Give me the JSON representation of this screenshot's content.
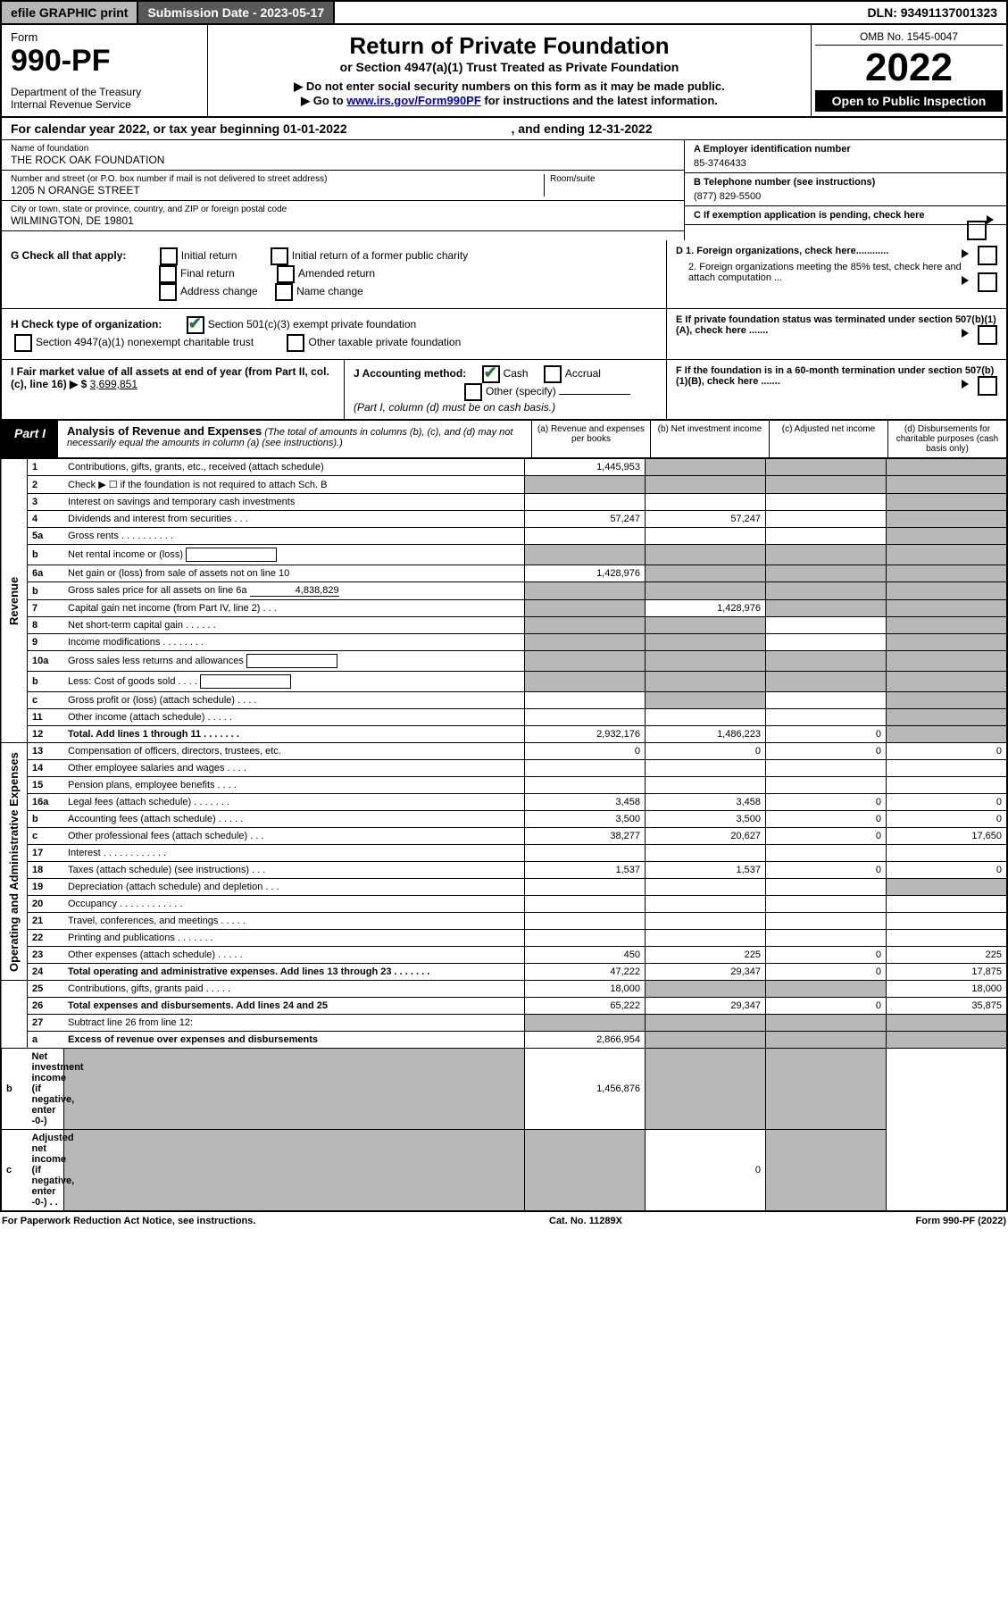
{
  "topbar": {
    "efile": "efile GRAPHIC print",
    "sub_label": "Submission Date - 2023-05-17",
    "dln": "DLN: 93491137001323"
  },
  "header": {
    "form_label": "Form",
    "form_number": "990-PF",
    "dept": "Department of the Treasury\nInternal Revenue Service",
    "title": "Return of Private Foundation",
    "subtitle": "or Section 4947(a)(1) Trust Treated as Private Foundation",
    "note1": "▶ Do not enter social security numbers on this form as it may be made public.",
    "note2_pre": "▶ Go to ",
    "note2_link": "www.irs.gov/Form990PF",
    "note2_post": " for instructions and the latest information.",
    "omb": "OMB No. 1545-0047",
    "year": "2022",
    "open_public": "Open to Public Inspection"
  },
  "calyear": {
    "text_pre": "For calendar year 2022, or tax year beginning ",
    "begin": "01-01-2022",
    "mid": ", and ending ",
    "end": "12-31-2022"
  },
  "ident": {
    "name_label": "Name of foundation",
    "name": "THE ROCK OAK FOUNDATION",
    "addr_label": "Number and street (or P.O. box number if mail is not delivered to street address)",
    "addr": "1205 N ORANGE STREET",
    "room_label": "Room/suite",
    "city_label": "City or town, state or province, country, and ZIP or foreign postal code",
    "city": "WILMINGTON, DE  19801",
    "a_label": "A Employer identification number",
    "a_value": "85-3746433",
    "b_label": "B Telephone number (see instructions)",
    "b_value": "(877) 829-5500",
    "c_label": "C If exemption application is pending, check here"
  },
  "sectionD": {
    "d1": "D 1. Foreign organizations, check here............",
    "d2": "2. Foreign organizations meeting the 85% test, check here and attach computation ...",
    "e": "E  If private foundation status was terminated under section 507(b)(1)(A), check here .......",
    "f": "F  If the foundation is in a 60-month termination under section 507(b)(1)(B), check here ......."
  },
  "sectionG": {
    "label": "G Check all that apply:",
    "opts": [
      "Initial return",
      "Initial return of a former public charity",
      "Final return",
      "Amended return",
      "Address change",
      "Name change"
    ]
  },
  "sectionH": {
    "label": "H Check type of organization:",
    "opt1": "Section 501(c)(3) exempt private foundation",
    "opt2": "Section 4947(a)(1) nonexempt charitable trust",
    "opt3": "Other taxable private foundation"
  },
  "sectionI": {
    "label_pre": "I Fair market value of all assets at end of year (from Part II, col. (c), line 16) ▶ $",
    "value": "3,699,851"
  },
  "sectionJ": {
    "label": "J Accounting method:",
    "cash": "Cash",
    "accrual": "Accrual",
    "other": "Other (specify)",
    "note": "(Part I, column (d) must be on cash basis.)"
  },
  "part1": {
    "label": "Part I",
    "title": "Analysis of Revenue and Expenses",
    "title_note": "(The total of amounts in columns (b), (c), and (d) may not necessarily equal the amounts in column (a) (see instructions).)",
    "cols": {
      "a": "(a) Revenue and expenses per books",
      "b": "(b) Net investment income",
      "c": "(c) Adjusted net income",
      "d": "(d) Disbursements for charitable purposes (cash basis only)"
    },
    "side_labels": {
      "revenue": "Revenue",
      "expenses": "Operating and Administrative Expenses"
    },
    "lines": [
      {
        "n": "1",
        "d": "Contributions, gifts, grants, etc., received (attach schedule)",
        "a": "1,445,953",
        "b": "shade",
        "c": "shade",
        "dd": "shade"
      },
      {
        "n": "2",
        "d": "Check ▶ ☐ if the foundation is not required to attach Sch. B",
        "a": "shade",
        "b": "shade",
        "c": "shade",
        "dd": "shade"
      },
      {
        "n": "3",
        "d": "Interest on savings and temporary cash investments",
        "a": "",
        "b": "",
        "c": "",
        "dd": "shade"
      },
      {
        "n": "4",
        "d": "Dividends and interest from securities  .  .  .",
        "a": "57,247",
        "b": "57,247",
        "c": "",
        "dd": "shade"
      },
      {
        "n": "5a",
        "d": "Gross rents  .  .  .  .  .  .  .  .  .  .",
        "a": "",
        "b": "",
        "c": "",
        "dd": "shade"
      },
      {
        "n": "b",
        "d": "Net rental income or (loss)",
        "a": "shade",
        "b": "shade",
        "c": "shade",
        "dd": "shade",
        "inline_box": true
      },
      {
        "n": "6a",
        "d": "Net gain or (loss) from sale of assets not on line 10",
        "a": "1,428,976",
        "b": "shade",
        "c": "shade",
        "dd": "shade"
      },
      {
        "n": "b",
        "d": "Gross sales price for all assets on line 6a",
        "a": "shade",
        "b": "shade",
        "c": "shade",
        "dd": "shade",
        "inline_val": "4,838,829"
      },
      {
        "n": "7",
        "d": "Capital gain net income (from Part IV, line 2)  .  .  .",
        "a": "shade",
        "b": "1,428,976",
        "c": "shade",
        "dd": "shade"
      },
      {
        "n": "8",
        "d": "Net short-term capital gain  .  .  .  .  .  .",
        "a": "shade",
        "b": "shade",
        "c": "",
        "dd": "shade"
      },
      {
        "n": "9",
        "d": "Income modifications  .  .  .  .  .  .  .  .",
        "a": "shade",
        "b": "shade",
        "c": "",
        "dd": "shade"
      },
      {
        "n": "10a",
        "d": "Gross sales less returns and allowances",
        "a": "shade",
        "b": "shade",
        "c": "shade",
        "dd": "shade",
        "inline_box": true
      },
      {
        "n": "b",
        "d": "Less: Cost of goods sold  .  .  .  .",
        "a": "shade",
        "b": "shade",
        "c": "shade",
        "dd": "shade",
        "inline_box": true
      },
      {
        "n": "c",
        "d": "Gross profit or (loss) (attach schedule)  .  .  .  .",
        "a": "",
        "b": "shade",
        "c": "",
        "dd": "shade"
      },
      {
        "n": "11",
        "d": "Other income (attach schedule)  .  .  .  .  .",
        "a": "",
        "b": "",
        "c": "",
        "dd": "shade"
      },
      {
        "n": "12",
        "d": "Total. Add lines 1 through 11  .  .  .  .  .  .  .",
        "a": "2,932,176",
        "b": "1,486,223",
        "c": "0",
        "dd": "shade",
        "bold": true
      },
      {
        "n": "13",
        "d": "Compensation of officers, directors, trustees, etc.",
        "a": "0",
        "b": "0",
        "c": "0",
        "dd": "0"
      },
      {
        "n": "14",
        "d": "Other employee salaries and wages  .  .  .  .",
        "a": "",
        "b": "",
        "c": "",
        "dd": ""
      },
      {
        "n": "15",
        "d": "Pension plans, employee benefits  .  .  .  .",
        "a": "",
        "b": "",
        "c": "",
        "dd": ""
      },
      {
        "n": "16a",
        "d": "Legal fees (attach schedule)  .  .  .  .  .  .  .",
        "a": "3,458",
        "b": "3,458",
        "c": "0",
        "dd": "0"
      },
      {
        "n": "b",
        "d": "Accounting fees (attach schedule)  .  .  .  .  .",
        "a": "3,500",
        "b": "3,500",
        "c": "0",
        "dd": "0"
      },
      {
        "n": "c",
        "d": "Other professional fees (attach schedule)  .  .  .",
        "a": "38,277",
        "b": "20,627",
        "c": "0",
        "dd": "17,650"
      },
      {
        "n": "17",
        "d": "Interest  .  .  .  .  .  .  .  .  .  .  .  .",
        "a": "",
        "b": "",
        "c": "",
        "dd": ""
      },
      {
        "n": "18",
        "d": "Taxes (attach schedule) (see instructions)  .  .  .",
        "a": "1,537",
        "b": "1,537",
        "c": "0",
        "dd": "0"
      },
      {
        "n": "19",
        "d": "Depreciation (attach schedule) and depletion  .  .  .",
        "a": "",
        "b": "",
        "c": "",
        "dd": "shade"
      },
      {
        "n": "20",
        "d": "Occupancy  .  .  .  .  .  .  .  .  .  .  .  .",
        "a": "",
        "b": "",
        "c": "",
        "dd": ""
      },
      {
        "n": "21",
        "d": "Travel, conferences, and meetings  .  .  .  .  .",
        "a": "",
        "b": "",
        "c": "",
        "dd": ""
      },
      {
        "n": "22",
        "d": "Printing and publications  .  .  .  .  .  .  .",
        "a": "",
        "b": "",
        "c": "",
        "dd": ""
      },
      {
        "n": "23",
        "d": "Other expenses (attach schedule)  .  .  .  .  .",
        "a": "450",
        "b": "225",
        "c": "0",
        "dd": "225"
      },
      {
        "n": "24",
        "d": "Total operating and administrative expenses. Add lines 13 through 23  .  .  .  .  .  .  .",
        "a": "47,222",
        "b": "29,347",
        "c": "0",
        "dd": "17,875",
        "bold": true
      },
      {
        "n": "25",
        "d": "Contributions, gifts, grants paid  .  .  .  .  .",
        "a": "18,000",
        "b": "shade",
        "c": "shade",
        "dd": "18,000"
      },
      {
        "n": "26",
        "d": "Total expenses and disbursements. Add lines 24 and 25",
        "a": "65,222",
        "b": "29,347",
        "c": "0",
        "dd": "35,875",
        "bold": true
      },
      {
        "n": "27",
        "d": "Subtract line 26 from line 12:",
        "a": "shade",
        "b": "shade",
        "c": "shade",
        "dd": "shade"
      },
      {
        "n": "a",
        "d": "Excess of revenue over expenses and disbursements",
        "a": "2,866,954",
        "b": "shade",
        "c": "shade",
        "dd": "shade",
        "bold": true
      },
      {
        "n": "b",
        "d": "Net investment income (if negative, enter -0-)",
        "a": "shade",
        "b": "1,456,876",
        "c": "shade",
        "dd": "shade",
        "bold": true
      },
      {
        "n": "c",
        "d": "Adjusted net income (if negative, enter -0-)  .  .",
        "a": "shade",
        "b": "shade",
        "c": "0",
        "dd": "shade",
        "bold": true
      }
    ]
  },
  "footer": {
    "left": "For Paperwork Reduction Act Notice, see instructions.",
    "mid": "Cat. No. 11289X",
    "right": "Form 990-PF (2022)"
  },
  "colors": {
    "toolbar_bg": "#b8b8b8",
    "dark_bg": "#595959",
    "black": "#000000",
    "link": "#0000cc",
    "check_green": "#1f7a3a",
    "shade": "#b8b8b8"
  }
}
